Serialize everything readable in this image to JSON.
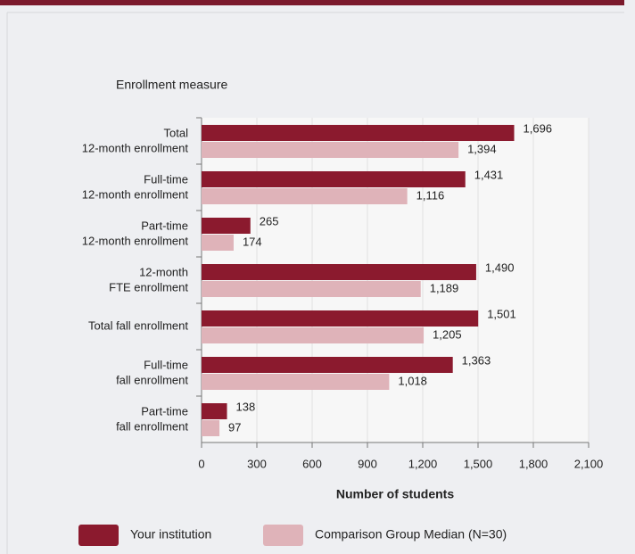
{
  "chart_data": {
    "type": "bar",
    "orientation": "horizontal",
    "y_axis_label": "Enrollment measure",
    "x_axis_label": "Number of students",
    "categories": [
      [
        "Total",
        "12-month enrollment"
      ],
      [
        "Full-time",
        "12-month enrollment"
      ],
      [
        "Part-time",
        "12-month enrollment"
      ],
      [
        "12-month",
        "FTE enrollment"
      ],
      [
        "Total fall enrollment"
      ],
      [
        "Full-time",
        "fall enrollment"
      ],
      [
        "Part-time",
        "fall enrollment"
      ]
    ],
    "series": [
      {
        "name": "Your institution",
        "color": "#8b1a2e",
        "values": [
          1696,
          1431,
          265,
          1490,
          1501,
          1363,
          138
        ],
        "value_labels": [
          "1,696",
          "1,431",
          "265",
          "1,490",
          "1,501",
          "1,363",
          "138"
        ]
      },
      {
        "name": "Comparison Group Median (N=30)",
        "color": "#dfb3b9",
        "values": [
          1394,
          1116,
          174,
          1189,
          1205,
          1018,
          97
        ],
        "value_labels": [
          "1,394",
          "1,116",
          "174",
          "1,189",
          "1,205",
          "1,018",
          "97"
        ]
      }
    ],
    "xlim": [
      0,
      2100
    ],
    "xticks": [
      0,
      300,
      600,
      900,
      {
        "value": 1200,
        "label": "1,200"
      },
      {
        "value": 1500,
        "label": "1,500"
      },
      {
        "value": 1800,
        "label": "1,800"
      },
      {
        "value": 2100,
        "label": "2,100"
      }
    ],
    "grid": true
  }
}
